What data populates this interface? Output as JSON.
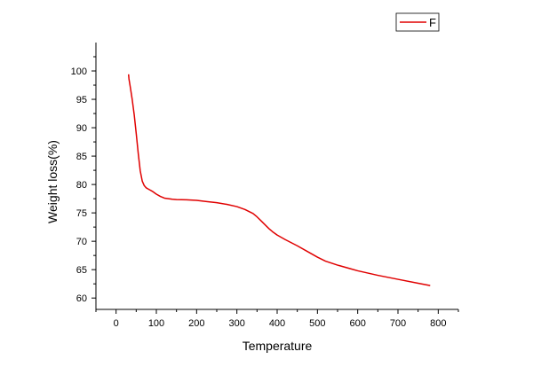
{
  "chart_data": {
    "type": "line",
    "title": "",
    "xlabel": "Temperature",
    "ylabel": "Weight loss(%)",
    "xlim": [
      -50,
      850
    ],
    "ylim": [
      58,
      105
    ],
    "x_ticks": [
      0,
      100,
      200,
      300,
      400,
      500,
      600,
      700,
      800
    ],
    "y_ticks": [
      60,
      65,
      70,
      75,
      80,
      85,
      90,
      95,
      100
    ],
    "grid": false,
    "legend": {
      "position": "top-right",
      "entries": [
        "F"
      ]
    },
    "series": [
      {
        "name": "F",
        "color": "#e00000",
        "x": [
          31,
          32,
          35,
          40,
          45,
          50,
          55,
          60,
          65,
          70,
          75,
          80,
          85,
          90,
          100,
          110,
          120,
          130,
          140,
          150,
          175,
          200,
          225,
          250,
          275,
          300,
          320,
          340,
          350,
          360,
          370,
          380,
          390,
          400,
          420,
          450,
          480,
          500,
          520,
          550,
          580,
          600,
          650,
          700,
          750,
          780
        ],
        "y": [
          99.4,
          98.6,
          97.3,
          95.0,
          92.3,
          89.0,
          85.5,
          82.4,
          80.6,
          79.8,
          79.4,
          79.2,
          79.0,
          78.8,
          78.3,
          77.9,
          77.6,
          77.5,
          77.4,
          77.35,
          77.3,
          77.2,
          77.0,
          76.8,
          76.5,
          76.1,
          75.6,
          74.9,
          74.3,
          73.6,
          72.9,
          72.2,
          71.6,
          71.1,
          70.3,
          69.2,
          68.0,
          67.2,
          66.5,
          65.8,
          65.2,
          64.8,
          64.0,
          63.3,
          62.6,
          62.2
        ]
      }
    ]
  }
}
